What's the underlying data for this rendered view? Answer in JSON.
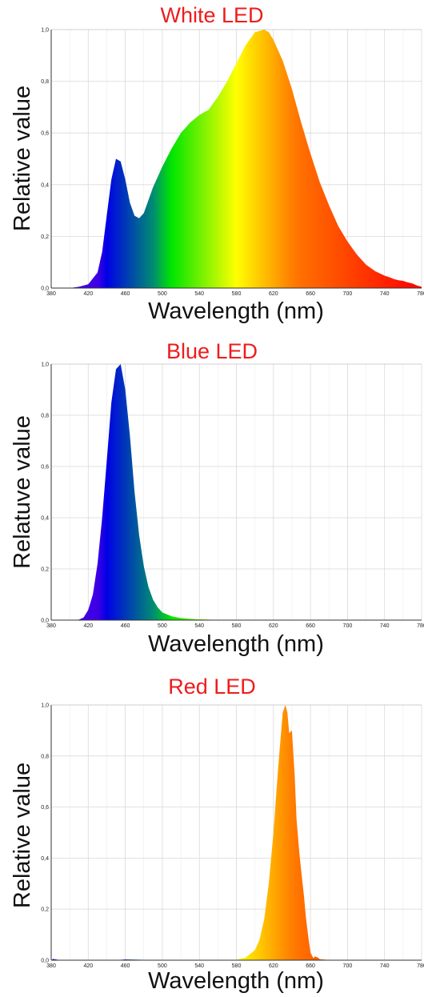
{
  "chart_data": [
    {
      "type": "area",
      "title": "White LED",
      "xlabel": "Wavelength (nm)",
      "ylabel": "Relative value",
      "xlim": [
        380,
        780
      ],
      "ylim": [
        0,
        1
      ],
      "x_ticks": [
        "380",
        "420",
        "460",
        "500",
        "540",
        "580",
        "620",
        "660",
        "700",
        "740",
        "780"
      ],
      "y_ticks": [
        "0,0",
        "0,2",
        "0,4",
        "0,6",
        "0,8",
        "1,0"
      ],
      "grid": true,
      "x": [
        380,
        400,
        410,
        420,
        430,
        435,
        440,
        445,
        450,
        455,
        460,
        465,
        470,
        475,
        480,
        485,
        490,
        500,
        510,
        520,
        530,
        540,
        550,
        560,
        570,
        580,
        590,
        600,
        610,
        615,
        620,
        630,
        640,
        650,
        660,
        670,
        680,
        690,
        700,
        710,
        720,
        730,
        740,
        745,
        750,
        755,
        760,
        765,
        770,
        775,
        780
      ],
      "y": [
        0,
        0,
        0.005,
        0.015,
        0.06,
        0.14,
        0.28,
        0.42,
        0.5,
        0.49,
        0.42,
        0.33,
        0.28,
        0.27,
        0.29,
        0.34,
        0.39,
        0.47,
        0.54,
        0.6,
        0.64,
        0.67,
        0.69,
        0.74,
        0.8,
        0.87,
        0.94,
        0.99,
        1.0,
        0.99,
        0.96,
        0.88,
        0.77,
        0.64,
        0.52,
        0.41,
        0.32,
        0.24,
        0.18,
        0.13,
        0.09,
        0.065,
        0.048,
        0.042,
        0.035,
        0.03,
        0.028,
        0.022,
        0.018,
        0.01,
        0.005
      ]
    },
    {
      "type": "area",
      "title": "Blue LED",
      "xlabel": "Wavelength (nm)",
      "ylabel": "Relatuve value",
      "xlim": [
        380,
        780
      ],
      "ylim": [
        0,
        1
      ],
      "x_ticks": [
        "380",
        "420",
        "460",
        "500",
        "540",
        "580",
        "620",
        "660",
        "700",
        "740",
        "780"
      ],
      "y_ticks": [
        "0,0",
        "0,2",
        "0,4",
        "0,6",
        "0,8",
        "1,0"
      ],
      "grid": true,
      "x": [
        380,
        400,
        410,
        415,
        420,
        425,
        430,
        435,
        440,
        445,
        450,
        455,
        460,
        465,
        470,
        475,
        480,
        485,
        490,
        495,
        500,
        510,
        520,
        530,
        540,
        560,
        600,
        650,
        700,
        780
      ],
      "y": [
        0,
        0,
        0.002,
        0.01,
        0.04,
        0.1,
        0.22,
        0.4,
        0.62,
        0.85,
        0.98,
        1.0,
        0.9,
        0.72,
        0.5,
        0.33,
        0.21,
        0.13,
        0.08,
        0.05,
        0.03,
        0.015,
        0.008,
        0.005,
        0.003,
        0.001,
        0.0005,
        0,
        0,
        0
      ]
    },
    {
      "type": "area",
      "title": "Red LED",
      "xlabel": "Wavelength (nm)",
      "ylabel": "Relative value",
      "xlim": [
        380,
        780
      ],
      "ylim": [
        0,
        1
      ],
      "x_ticks": [
        "380",
        "420",
        "460",
        "500",
        "540",
        "580",
        "620",
        "660",
        "700",
        "740",
        "780"
      ],
      "y_ticks": [
        "0,0",
        "0,2",
        "0,4",
        "0,6",
        "0,8",
        "1,0"
      ],
      "grid": true,
      "x": [
        380,
        382,
        385,
        390,
        400,
        450,
        460,
        500,
        570,
        580,
        590,
        600,
        605,
        610,
        615,
        620,
        625,
        630,
        633,
        635,
        637,
        640,
        643,
        645,
        648,
        650,
        653,
        655,
        658,
        660,
        663,
        665,
        668,
        670,
        680,
        700,
        780
      ],
      "y": [
        0,
        0.005,
        0.003,
        0,
        0,
        0,
        0.003,
        0,
        0,
        0.002,
        0.01,
        0.04,
        0.08,
        0.16,
        0.3,
        0.5,
        0.75,
        0.97,
        1.0,
        0.97,
        0.89,
        0.9,
        0.72,
        0.55,
        0.42,
        0.35,
        0.25,
        0.17,
        0.08,
        0.03,
        0.008,
        0.015,
        0.01,
        0.004,
        0.001,
        0,
        0
      ]
    }
  ]
}
